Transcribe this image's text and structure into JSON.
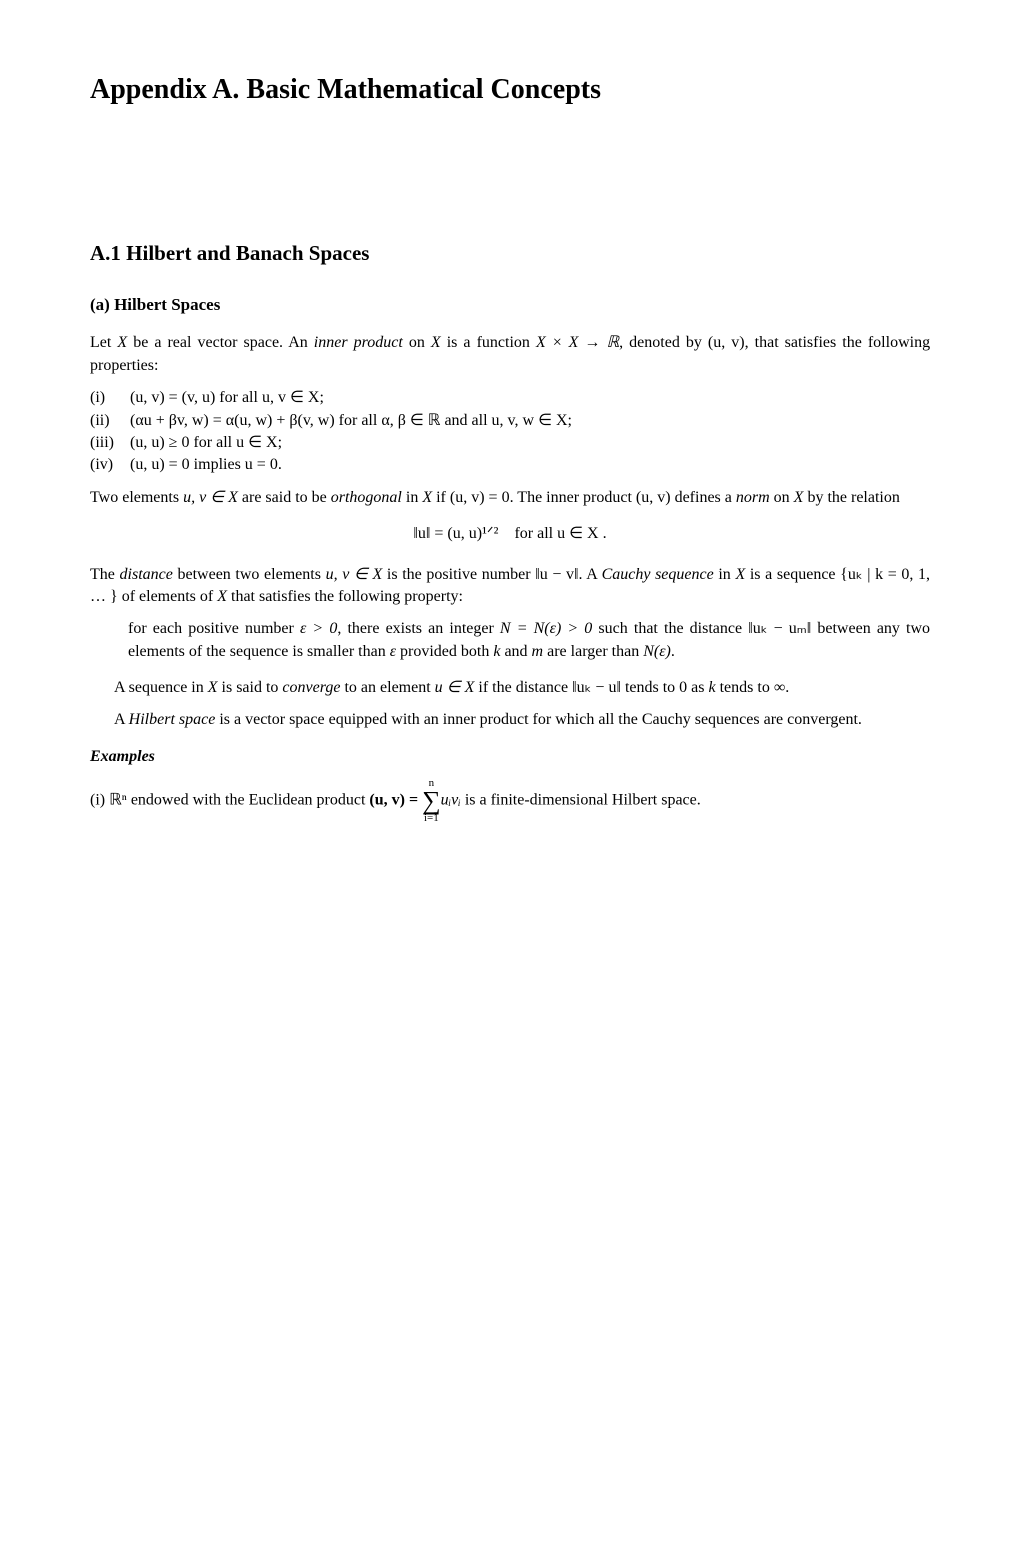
{
  "title": "Appendix A. Basic Mathematical Concepts",
  "h2": "A.1 Hilbert and Banach Spaces",
  "h3": "(a) Hilbert Spaces",
  "p1a": "Let ",
  "p1b": " be a real vector space. An ",
  "p1_em1": "inner product ",
  "p1c": "on ",
  "p1d": " is a function ",
  "p1e": ", denoted by ",
  "p1f": ", that satisfies the following properties:",
  "li1_m": "(i)",
  "li1_b": "(u, v) = (v, u) for all u, v ∈ X;",
  "li2_m": "(ii)",
  "li2_b": "(αu + βv, w) = α(u, w) + β(v, w) for all α, β ∈ ℝ and all u, v, w ∈ X;",
  "li3_m": "(iii)",
  "li3_b": "(u, u) ≥ 0 for all u ∈ X;",
  "li4_m": "(iv)",
  "li4_b": "(u, u) = 0 implies u = 0.",
  "p2a": "Two elements ",
  "p2b": " are said to be ",
  "p2_em1": "orthogonal ",
  "p2c": "in ",
  "p2d": " if ",
  "p2e": ". The inner product ",
  "p2f": " defines a ",
  "p2_em2": "norm ",
  "p2g": "on ",
  "p2h": " by the relation",
  "formula1": "‖u‖ = (u, u)¹ᐟ² for all u ∈ X .",
  "p3a": "The ",
  "p3_em1": "distance ",
  "p3b": "between two elements ",
  "p3c": " is the positive number ",
  "p3d": ". A ",
  "p3_em2": "Cauchy sequence ",
  "p3e": "in ",
  "p3f": " is a sequence ",
  "p3g": " of elements of ",
  "p3h": " that satisfies the following property:",
  "bq_a": "for each positive number ",
  "bq_b": ", there exists an integer ",
  "bq_c": " such that the distance ",
  "bq_d": " between any two elements of the sequence is smaller than ",
  "bq_e": " provided both ",
  "bq_f": " and ",
  "bq_g": " are larger than ",
  "bq_h": ".",
  "p4a": "A sequence in ",
  "p4b": " is said to ",
  "p4_em1": "converge ",
  "p4c": "to an element ",
  "p4d": " if the distance ",
  "p4e": " tends to 0 as ",
  "p4f": " tends to ",
  "p4g": ".",
  "p5a": "A ",
  "p5_em1": "Hilbert space ",
  "p5b": "is a vector space equipped with an inner product for which all the Cauchy sequences are convergent.",
  "examples": "Examples",
  "p6a": "(i) ",
  "p6b": " endowed with the Euclidean product ",
  "p6c": " is a finite-dimensional Hilbert space.",
  "sym_X": "X",
  "sym_XxX": "X × X → ℝ",
  "sym_uv": "(u, v)",
  "sym_uvinX": "u, v ∈ X",
  "sym_uvzero": "(u, v) = 0",
  "sym_norm_umv": "‖u − v‖",
  "sym_seq": "{uₖ | k = 0, 1, … }",
  "sym_eps": "ε > 0",
  "sym_Neps": "N = N(ε) > 0",
  "sym_ukum": "‖uₖ − uₘ‖",
  "sym_epsilon": "ε",
  "sym_k": "k",
  "sym_m": "m",
  "sym_Neps2": "N(ε)",
  "sym_uinX": "u ∈ X",
  "sym_uku": "‖uₖ − u‖",
  "sym_inf": "∞",
  "sym_Rn": "ℝⁿ",
  "sym_uvbold": "(u, v) = ",
  "sym_uivi": "uᵢvᵢ",
  "sum_top": "n",
  "sum_sigma": "∑",
  "sum_bot": "i=1"
}
